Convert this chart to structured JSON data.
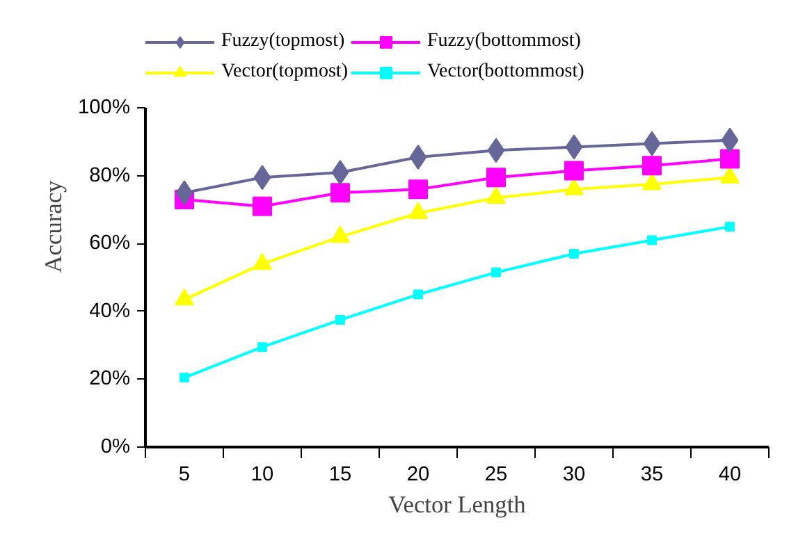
{
  "chart_data": {
    "type": "line",
    "xlabel": "Vector Length",
    "ylabel": "Accuracy",
    "categories": [
      "5",
      "10",
      "15",
      "20",
      "25",
      "30",
      "35",
      "40"
    ],
    "series": [
      {
        "name": "Fuzzy(topmost)",
        "color": "#666699",
        "marker": "diamond",
        "values": [
          75,
          79.5,
          81,
          85.5,
          87.5,
          88.5,
          89.5,
          90.5
        ]
      },
      {
        "name": "Fuzzy(bottommost)",
        "color": "#ff00ff",
        "marker": "square",
        "values": [
          73,
          71,
          75,
          76,
          79.5,
          81.5,
          83,
          85
        ]
      },
      {
        "name": "Vector(topmost)",
        "color": "#ffff00",
        "marker": "triangle",
        "values": [
          43.5,
          54,
          62,
          69,
          73.5,
          76,
          77.5,
          79.5
        ]
      },
      {
        "name": "Vector(bottommost)",
        "color": "#00ffff",
        "marker": "square",
        "values": [
          20.5,
          29.5,
          37.5,
          45,
          51.5,
          57,
          61,
          65
        ]
      }
    ],
    "ylim": [
      0,
      100
    ],
    "yticks": [
      {
        "value": 0,
        "label": "0%"
      },
      {
        "value": 20,
        "label": "20%"
      },
      {
        "value": 40,
        "label": "40%"
      },
      {
        "value": 60,
        "label": "60%"
      },
      {
        "value": 80,
        "label": "80%"
      },
      {
        "value": 100,
        "label": "100%"
      }
    ],
    "grid": false,
    "legend": "top",
    "line_style": "solid"
  }
}
